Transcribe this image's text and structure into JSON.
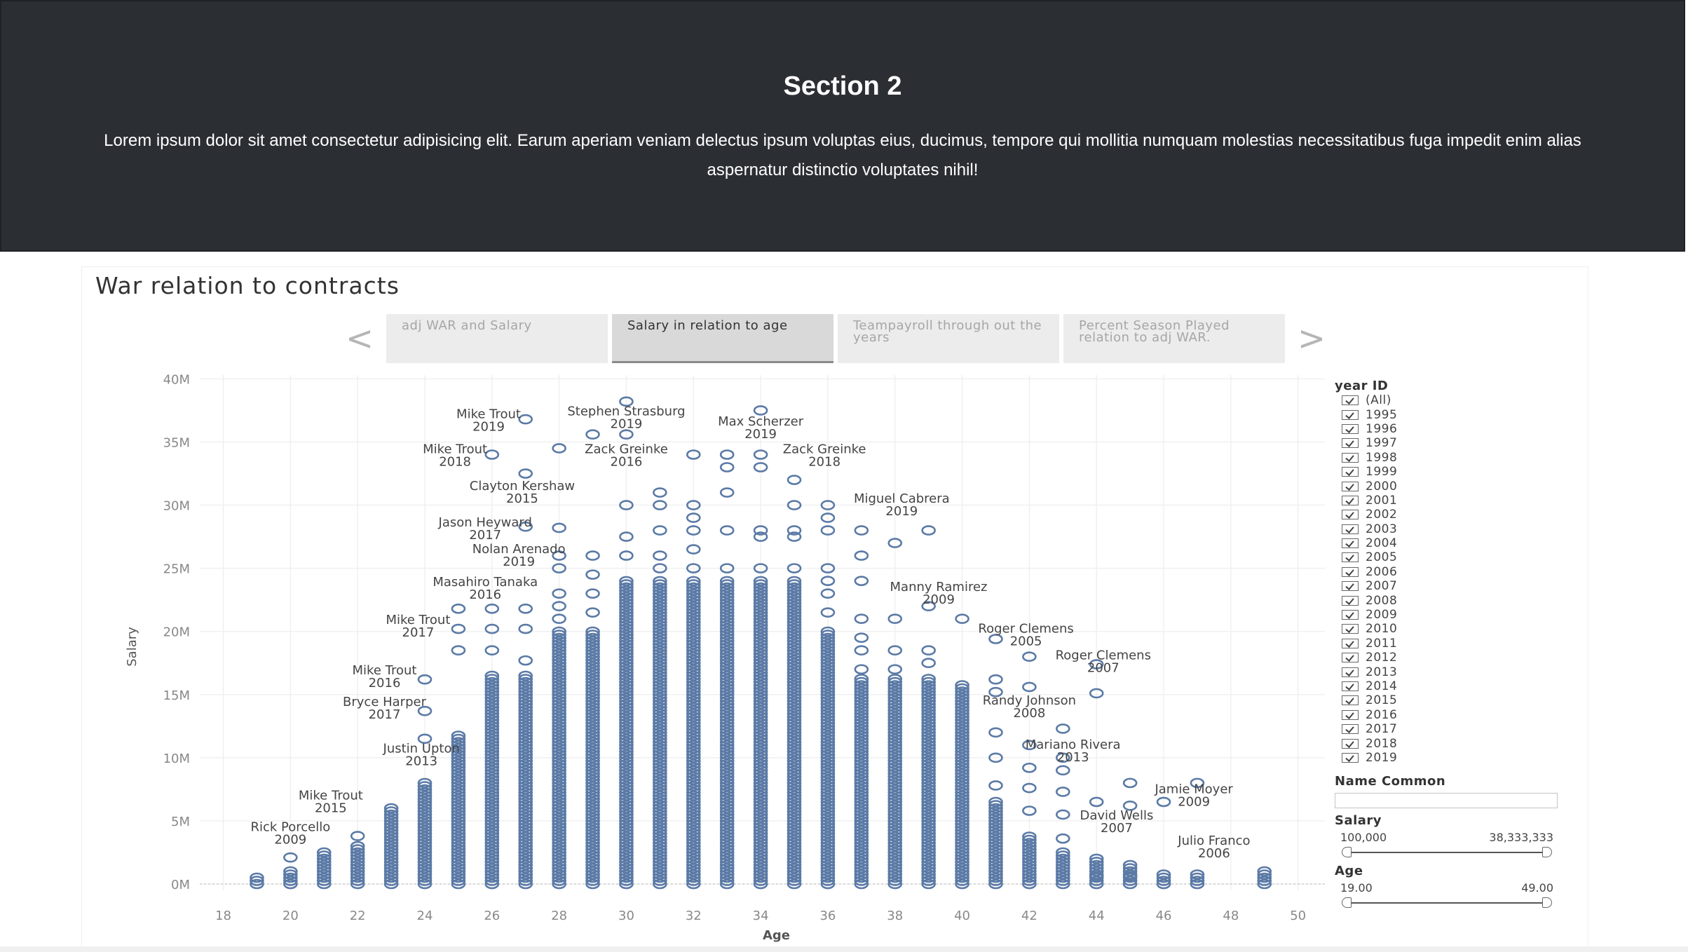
{
  "hero": {
    "title": "Section 2",
    "body": "Lorem ipsum dolor sit amet consectetur adipisicing elit. Earum aperiam veniam delectus ipsum voluptas eius, ducimus, tempore qui mollitia numquam molestias necessitatibus fuga impedit enim alias aspernatur distinctio voluptates nihil!"
  },
  "viz": {
    "title": "War relation to contracts",
    "nav_prev": "<",
    "nav_next": ">",
    "tabs": [
      {
        "label": "adj WAR and Salary",
        "active": false
      },
      {
        "label": "Salary in relation to age",
        "active": true
      },
      {
        "label": "Teampayroll through out the years",
        "active": false
      },
      {
        "label": "Percent Season Played relation to adj WAR.",
        "active": false
      }
    ]
  },
  "filters": {
    "year_title": "year ID",
    "years": [
      "(All)",
      "1995",
      "1996",
      "1997",
      "1998",
      "1999",
      "2000",
      "2001",
      "2002",
      "2003",
      "2004",
      "2005",
      "2006",
      "2007",
      "2008",
      "2009",
      "2010",
      "2011",
      "2012",
      "2013",
      "2014",
      "2015",
      "2016",
      "2017",
      "2018",
      "2019"
    ],
    "name_title": "Name Common",
    "name_value": "",
    "salary_title": "Salary",
    "salary_min": "100,000",
    "salary_max": "38,333,333",
    "age_title": "Age",
    "age_min": "19.00",
    "age_max": "49.00"
  },
  "colors": {
    "mark": "#5b7aa6",
    "label": "#444444",
    "hero_bg": "#2b2f33"
  },
  "chart_data": {
    "type": "scatter",
    "xlabel": "Age",
    "ylabel": "Salary",
    "x_ticks": [
      18,
      20,
      22,
      24,
      26,
      28,
      30,
      32,
      34,
      36,
      38,
      40,
      42,
      44,
      46,
      48,
      50
    ],
    "y_ticks": [
      0,
      5,
      10,
      15,
      20,
      25,
      30,
      35,
      40
    ],
    "y_tick_labels": [
      "0M",
      "5M",
      "10M",
      "15M",
      "20M",
      "25M",
      "30M",
      "35M",
      "40M"
    ],
    "xlim": [
      17.3,
      50.8
    ],
    "ylim": [
      -0.5,
      40.3
    ],
    "y_unit": "M",
    "columns": [
      {
        "age": 19,
        "dense_max": 0.6,
        "extra": []
      },
      {
        "age": 20,
        "dense_max": 1.2,
        "extra": [
          2.1
        ]
      },
      {
        "age": 21,
        "dense_max": 2.5,
        "extra": []
      },
      {
        "age": 22,
        "dense_max": 3,
        "extra": [
          3.8
        ]
      },
      {
        "age": 23,
        "dense_max": 6.2,
        "extra": []
      },
      {
        "age": 24,
        "dense_max": 8.2,
        "extra": [
          11.5,
          13.7,
          16.2
        ]
      },
      {
        "age": 25,
        "dense_max": 11.8,
        "extra": [
          18.5,
          20.2,
          21.8
        ]
      },
      {
        "age": 26,
        "dense_max": 16.5,
        "extra": [
          18.5,
          20.2,
          21.8,
          34
        ]
      },
      {
        "age": 27,
        "dense_max": 16.5,
        "extra": [
          17.7,
          20.2,
          21.8,
          28.3,
          32.5,
          36.8
        ]
      },
      {
        "age": 28,
        "dense_max": 20,
        "extra": [
          21,
          22,
          23,
          25,
          26,
          28.2,
          34.5
        ]
      },
      {
        "age": 29,
        "dense_max": 20,
        "extra": [
          21.5,
          23,
          24.5,
          26,
          35.6
        ]
      },
      {
        "age": 30,
        "dense_max": 24,
        "extra": [
          26,
          27.5,
          30,
          35.6,
          38.2
        ]
      },
      {
        "age": 31,
        "dense_max": 24.2,
        "extra": [
          25,
          26,
          28,
          30,
          31
        ]
      },
      {
        "age": 32,
        "dense_max": 24.2,
        "extra": [
          25,
          26.5,
          28,
          29,
          30,
          34
        ]
      },
      {
        "age": 33,
        "dense_max": 24.2,
        "extra": [
          25,
          28,
          31,
          33,
          34
        ]
      },
      {
        "age": 34,
        "dense_max": 24.2,
        "extra": [
          25,
          27.5,
          28,
          33,
          34,
          37.5
        ]
      },
      {
        "age": 35,
        "dense_max": 24.2,
        "extra": [
          25,
          27.5,
          28,
          30,
          32
        ]
      },
      {
        "age": 36,
        "dense_max": 20.2,
        "extra": [
          21.5,
          23,
          24,
          25,
          28,
          29,
          30
        ]
      },
      {
        "age": 37,
        "dense_max": 16.3,
        "extra": [
          17,
          18.5,
          19.5,
          21,
          24,
          26,
          28
        ]
      },
      {
        "age": 38,
        "dense_max": 16.3,
        "extra": [
          17,
          18.5,
          21,
          27
        ]
      },
      {
        "age": 39,
        "dense_max": 16.3,
        "extra": [
          17.5,
          18.5,
          22,
          28
        ]
      },
      {
        "age": 40,
        "dense_max": 15.8,
        "extra": [
          21
        ]
      },
      {
        "age": 41,
        "dense_max": 6.5,
        "extra": [
          7.8,
          10,
          12,
          15.2,
          16.2,
          19.4
        ]
      },
      {
        "age": 42,
        "dense_max": 3.9,
        "extra": [
          5.8,
          7.6,
          9.2,
          11,
          15.6,
          18
        ]
      },
      {
        "age": 43,
        "dense_max": 2.5,
        "extra": [
          3.6,
          5.5,
          7.3,
          9,
          10,
          12.3
        ]
      },
      {
        "age": 44,
        "dense_max": 2,
        "extra": [
          0.6,
          6.5,
          15.1,
          17.4
        ]
      },
      {
        "age": 45,
        "dense_max": 1.5,
        "extra": [
          0.6,
          6.2,
          8
        ]
      },
      {
        "age": 46,
        "dense_max": 0.9,
        "extra": [
          6.5
        ]
      },
      {
        "age": 47,
        "dense_max": 0.9,
        "extra": [
          8
        ]
      },
      {
        "age": 49,
        "dense_max": 1.2,
        "extra": []
      }
    ],
    "annotations": [
      {
        "name": "Mike Trout",
        "year": "2019",
        "x": 25.9,
        "y": 36.9
      },
      {
        "name": "Stephen Strasburg",
        "year": "2019",
        "x": 30,
        "y": 37.1
      },
      {
        "name": "Max Scherzer",
        "year": "2019",
        "x": 34,
        "y": 36.3
      },
      {
        "name": "Mike Trout",
        "year": "2018",
        "x": 24.9,
        "y": 34.1
      },
      {
        "name": "Zack Greinke",
        "year": "2016",
        "x": 30,
        "y": 34.1
      },
      {
        "name": "Zack Greinke",
        "year": "2018",
        "x": 35.9,
        "y": 34.1
      },
      {
        "name": "Clayton Kershaw",
        "year": "2015",
        "x": 26.9,
        "y": 31.2
      },
      {
        "name": "Miguel Cabrera",
        "year": "2019",
        "x": 38.2,
        "y": 30.2
      },
      {
        "name": "Jason Heyward",
        "year": "2017",
        "x": 25.8,
        "y": 28.3
      },
      {
        "name": "Nolan Arenado",
        "year": "2019",
        "x": 26.8,
        "y": 26.2
      },
      {
        "name": "Masahiro Tanaka",
        "year": "2016",
        "x": 25.8,
        "y": 23.6
      },
      {
        "name": "Manny Ramirez",
        "year": "2009",
        "x": 39.3,
        "y": 23.2
      },
      {
        "name": "Mike Trout",
        "year": "2017",
        "x": 23.8,
        "y": 20.6
      },
      {
        "name": "Roger Clemens",
        "year": "2005",
        "x": 41.9,
        "y": 19.9
      },
      {
        "name": "Roger Clemens",
        "year": "2007",
        "x": 44.2,
        "y": 17.8
      },
      {
        "name": "Mike Trout",
        "year": "2016",
        "x": 22.8,
        "y": 16.6
      },
      {
        "name": "Randy Johnson",
        "year": "2008",
        "x": 42,
        "y": 14.2
      },
      {
        "name": "Bryce Harper",
        "year": "2017",
        "x": 22.8,
        "y": 14.1
      },
      {
        "name": "Justin Upton",
        "year": "2013",
        "x": 23.9,
        "y": 10.4
      },
      {
        "name": "Mariano Rivera",
        "year": "2013",
        "x": 43.3,
        "y": 10.7
      },
      {
        "name": "Mike Trout",
        "year": "2015",
        "x": 21.2,
        "y": 6.7
      },
      {
        "name": "Jamie Moyer",
        "year": "2009",
        "x": 46.9,
        "y": 7.2
      },
      {
        "name": "David Wells",
        "year": "2007",
        "x": 44.6,
        "y": 5.1
      },
      {
        "name": "Rick Porcello",
        "year": "2009",
        "x": 20,
        "y": 4.2
      },
      {
        "name": "Julio Franco",
        "year": "2006",
        "x": 47.5,
        "y": 3.1
      }
    ]
  }
}
